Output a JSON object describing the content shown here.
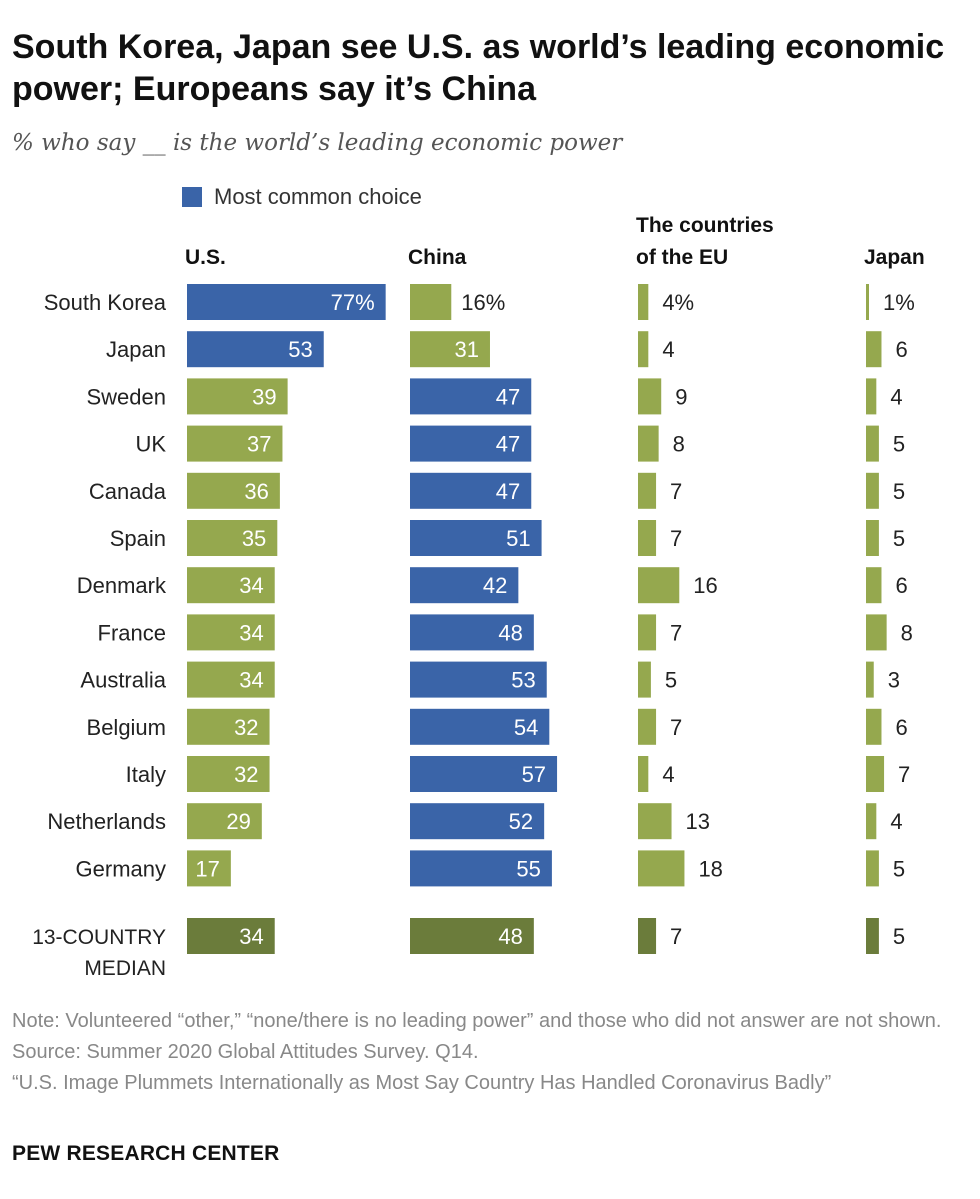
{
  "title": "South Korea, Japan see U.S. as world’s leading economic power; Europeans say it’s China",
  "subtitle": "% who say __ is the world’s leading economic power",
  "legend": {
    "label": "Most common choice"
  },
  "colors": {
    "most_common": "#3a64a8",
    "other": "#95a84e",
    "median": "#6b7c3b"
  },
  "chart_data": {
    "type": "bar",
    "columns": [
      "U.S.",
      "China",
      "The countries of the EU",
      "Japan"
    ],
    "categories": [
      "South Korea",
      "Japan",
      "Sweden",
      "UK",
      "Canada",
      "Spain",
      "Denmark",
      "France",
      "Australia",
      "Belgium",
      "Italy",
      "Netherlands",
      "Germany"
    ],
    "series": [
      {
        "name": "U.S.",
        "values": [
          77,
          53,
          39,
          37,
          36,
          35,
          34,
          34,
          34,
          32,
          32,
          29,
          17
        ]
      },
      {
        "name": "China",
        "values": [
          16,
          31,
          47,
          47,
          47,
          51,
          42,
          48,
          53,
          54,
          57,
          52,
          55
        ]
      },
      {
        "name": "The countries of the EU",
        "values": [
          4,
          4,
          9,
          8,
          7,
          7,
          16,
          7,
          5,
          7,
          4,
          13,
          18
        ]
      },
      {
        "name": "Japan",
        "values": [
          1,
          6,
          4,
          5,
          5,
          5,
          6,
          8,
          3,
          6,
          7,
          4,
          5
        ]
      }
    ],
    "most_common": [
      "U.S.",
      "U.S.",
      "China",
      "China",
      "China",
      "China",
      "China",
      "China",
      "China",
      "China",
      "China",
      "China",
      "China"
    ],
    "first_row_suffix": "%",
    "median": {
      "label": "13-COUNTRY MEDIAN",
      "values": [
        34,
        48,
        7,
        5
      ]
    }
  },
  "notes": {
    "note": "Note: Volunteered “other,” “none/there is no leading power” and those who did not answer are not shown.",
    "source": "Source: Summer 2020 Global Attitudes Survey. Q14.",
    "report": "“U.S. Image Plummets Internationally as Most Say Country Has Handled Coronavirus Badly”"
  },
  "brand": "PEW RESEARCH CENTER"
}
